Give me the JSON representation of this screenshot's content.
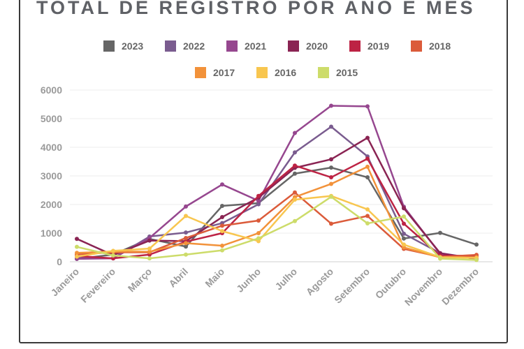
{
  "chart_data": {
    "type": "line",
    "title": "TOTAL DE REGISTRO POR ANO E MÊS",
    "xlabel": "",
    "ylabel": "",
    "ylim": [
      0,
      6000
    ],
    "yticks": [
      "0",
      "1000",
      "2000",
      "3000",
      "4000",
      "5000",
      "6000"
    ],
    "grid": true,
    "legend_position": "top",
    "categories": [
      "Janeiro",
      "Fevereiro",
      "Março",
      "Abril",
      "Maio",
      "Junho",
      "Julho",
      "Agosto",
      "Setembro",
      "Outubro",
      "Novembro",
      "Dezembro"
    ],
    "series": [
      {
        "name": "2023",
        "color": "#666666",
        "values": [
          100,
          250,
          800,
          530,
          1950,
          2050,
          3080,
          3290,
          2950,
          810,
          1010,
          600
        ]
      },
      {
        "name": "2022",
        "color": "#7a5c8f",
        "values": [
          130,
          120,
          880,
          1020,
          1350,
          2010,
          3820,
          4720,
          3680,
          980,
          300,
          110
        ]
      },
      {
        "name": "2021",
        "color": "#96478f",
        "values": [
          100,
          120,
          830,
          1930,
          2700,
          2130,
          4500,
          5450,
          5430,
          1920,
          280,
          100
        ]
      },
      {
        "name": "2020",
        "color": "#8a2453",
        "values": [
          800,
          230,
          740,
          720,
          1560,
          2240,
          3280,
          3580,
          4330,
          1870,
          300,
          90
        ]
      },
      {
        "name": "2019",
        "color": "#bd2344",
        "values": [
          200,
          120,
          250,
          700,
          1000,
          2300,
          3360,
          2950,
          3600,
          1330,
          210,
          210
        ]
      },
      {
        "name": "2018",
        "color": "#db5b3a",
        "values": [
          260,
          330,
          330,
          830,
          1260,
          1440,
          2420,
          1330,
          1600,
          450,
          170,
          240
        ]
      },
      {
        "name": "2017",
        "color": "#f2923a",
        "values": [
          310,
          360,
          350,
          650,
          560,
          1000,
          2260,
          2720,
          3320,
          500,
          150,
          160
        ]
      },
      {
        "name": "2016",
        "color": "#f8c64f",
        "values": [
          180,
          380,
          460,
          1600,
          1070,
          720,
          2170,
          2300,
          1830,
          600,
          160,
          130
        ]
      },
      {
        "name": "2015",
        "color": "#cddc6a",
        "values": [
          520,
          220,
          120,
          250,
          400,
          820,
          1420,
          2270,
          1340,
          1580,
          110,
          60
        ]
      }
    ]
  }
}
